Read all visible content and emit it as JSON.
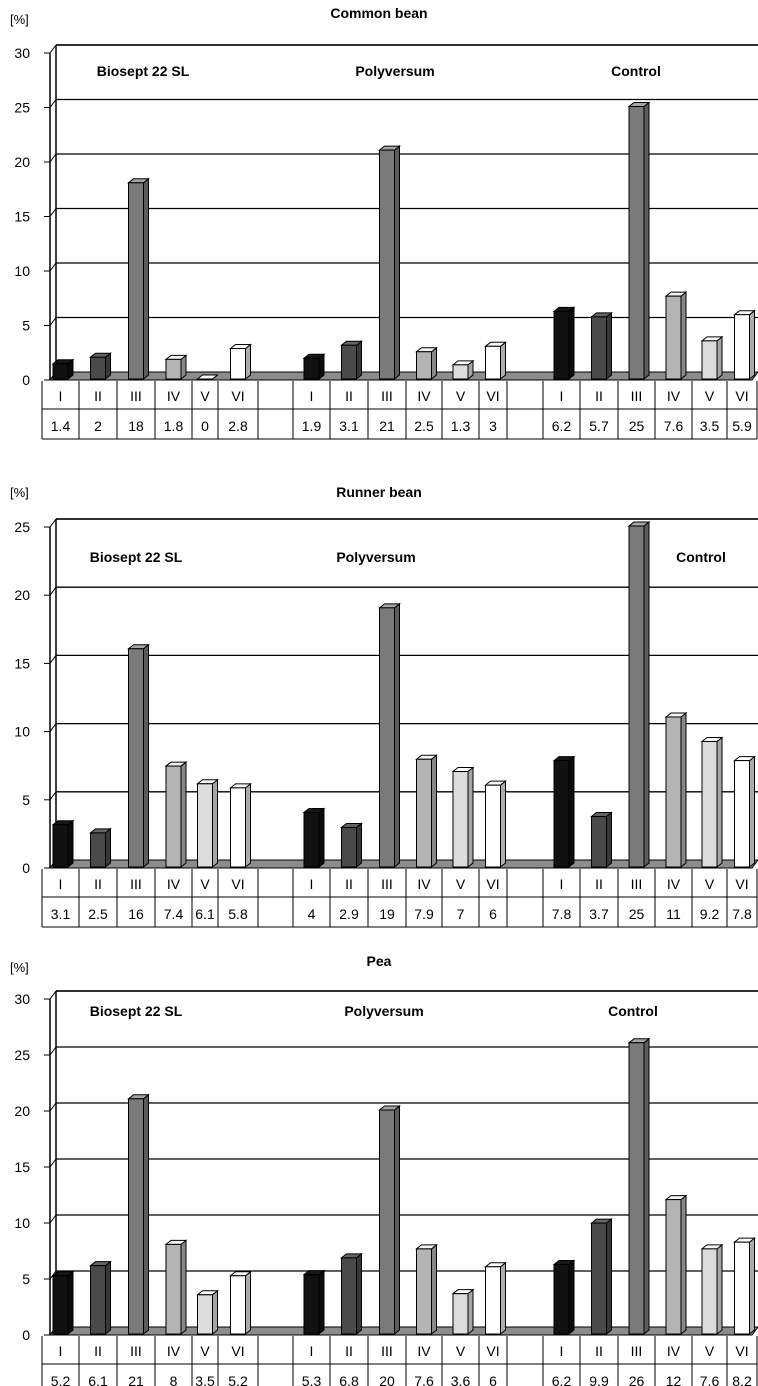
{
  "chart_data": [
    {
      "type": "bar",
      "title": "Common bean",
      "ylabel": "[%]",
      "ylim": [
        0,
        30
      ],
      "yticks": [
        0,
        5,
        10,
        15,
        20,
        25,
        30
      ],
      "categories": [
        "I",
        "II",
        "III",
        "IV",
        "V",
        "VI"
      ],
      "groups": [
        {
          "name": "Biosept 22 SL",
          "values": [
            1.4,
            2,
            18,
            1.8,
            0,
            2.8
          ],
          "labels": [
            "1.4",
            "2",
            "18",
            "1.8",
            "0",
            "2.8"
          ]
        },
        {
          "name": "Polyversum",
          "values": [
            1.9,
            3.1,
            21,
            2.5,
            1.3,
            3
          ],
          "labels": [
            "1.9",
            "3.1",
            "21",
            "2.5",
            "1.3",
            "3"
          ]
        },
        {
          "name": "Control",
          "values": [
            6.2,
            5.7,
            25,
            7.6,
            3.5,
            5.9
          ],
          "labels": [
            "6.2",
            "5.7",
            "25",
            "7.6",
            "3.5",
            "5.9"
          ]
        }
      ],
      "grid": true
    },
    {
      "type": "bar",
      "title": "Runner bean",
      "ylabel": "[%]",
      "ylim": [
        0,
        25
      ],
      "yticks": [
        0,
        5,
        10,
        15,
        20,
        25
      ],
      "categories": [
        "I",
        "II",
        "III",
        "IV",
        "V",
        "VI"
      ],
      "groups": [
        {
          "name": "Biosept 22 SL",
          "values": [
            3.1,
            2.5,
            16,
            7.4,
            6.1,
            5.8
          ],
          "labels": [
            "3.1",
            "2.5",
            "16",
            "7.4",
            "6.1",
            "5.8"
          ]
        },
        {
          "name": "Polyversum",
          "values": [
            4,
            2.9,
            19,
            7.9,
            7,
            6
          ],
          "labels": [
            "4",
            "2.9",
            "19",
            "7.9",
            "7",
            "6"
          ]
        },
        {
          "name": "Control",
          "values": [
            7.8,
            3.7,
            25,
            11,
            9.2,
            7.8
          ],
          "labels": [
            "7.8",
            "3.7",
            "25",
            "11",
            "9.2",
            "7.8"
          ]
        }
      ],
      "grid": true
    },
    {
      "type": "bar",
      "title": "Pea",
      "ylabel": "[%]",
      "ylim": [
        0,
        30
      ],
      "yticks": [
        0,
        5,
        10,
        15,
        20,
        25,
        30
      ],
      "categories": [
        "I",
        "II",
        "III",
        "IV",
        "V",
        "VI"
      ],
      "groups": [
        {
          "name": "Biosept 22 SL",
          "values": [
            5.2,
            6.1,
            21,
            8,
            3.5,
            5.2
          ],
          "labels": [
            "5.2",
            "6.1",
            "21",
            "8",
            "3.5",
            "5.2"
          ]
        },
        {
          "name": "Polyversum",
          "values": [
            5.3,
            6.8,
            20,
            7.6,
            3.6,
            6
          ],
          "labels": [
            "5.3",
            "6.8",
            "20",
            "7.6",
            "3.6",
            "6"
          ]
        },
        {
          "name": "Control",
          "values": [
            6.2,
            9.9,
            26,
            12,
            7.6,
            8.2
          ],
          "labels": [
            "6.2",
            "9.9",
            "26",
            "12",
            "7.6",
            "8.2"
          ]
        }
      ],
      "grid": true
    }
  ],
  "colors": {
    "series": [
      "#111111",
      "#4a4a4a",
      "#7a7a7a",
      "#b4b4b4",
      "#dcdcdc",
      "#ffffff"
    ],
    "floor": "#8c8c8c"
  }
}
